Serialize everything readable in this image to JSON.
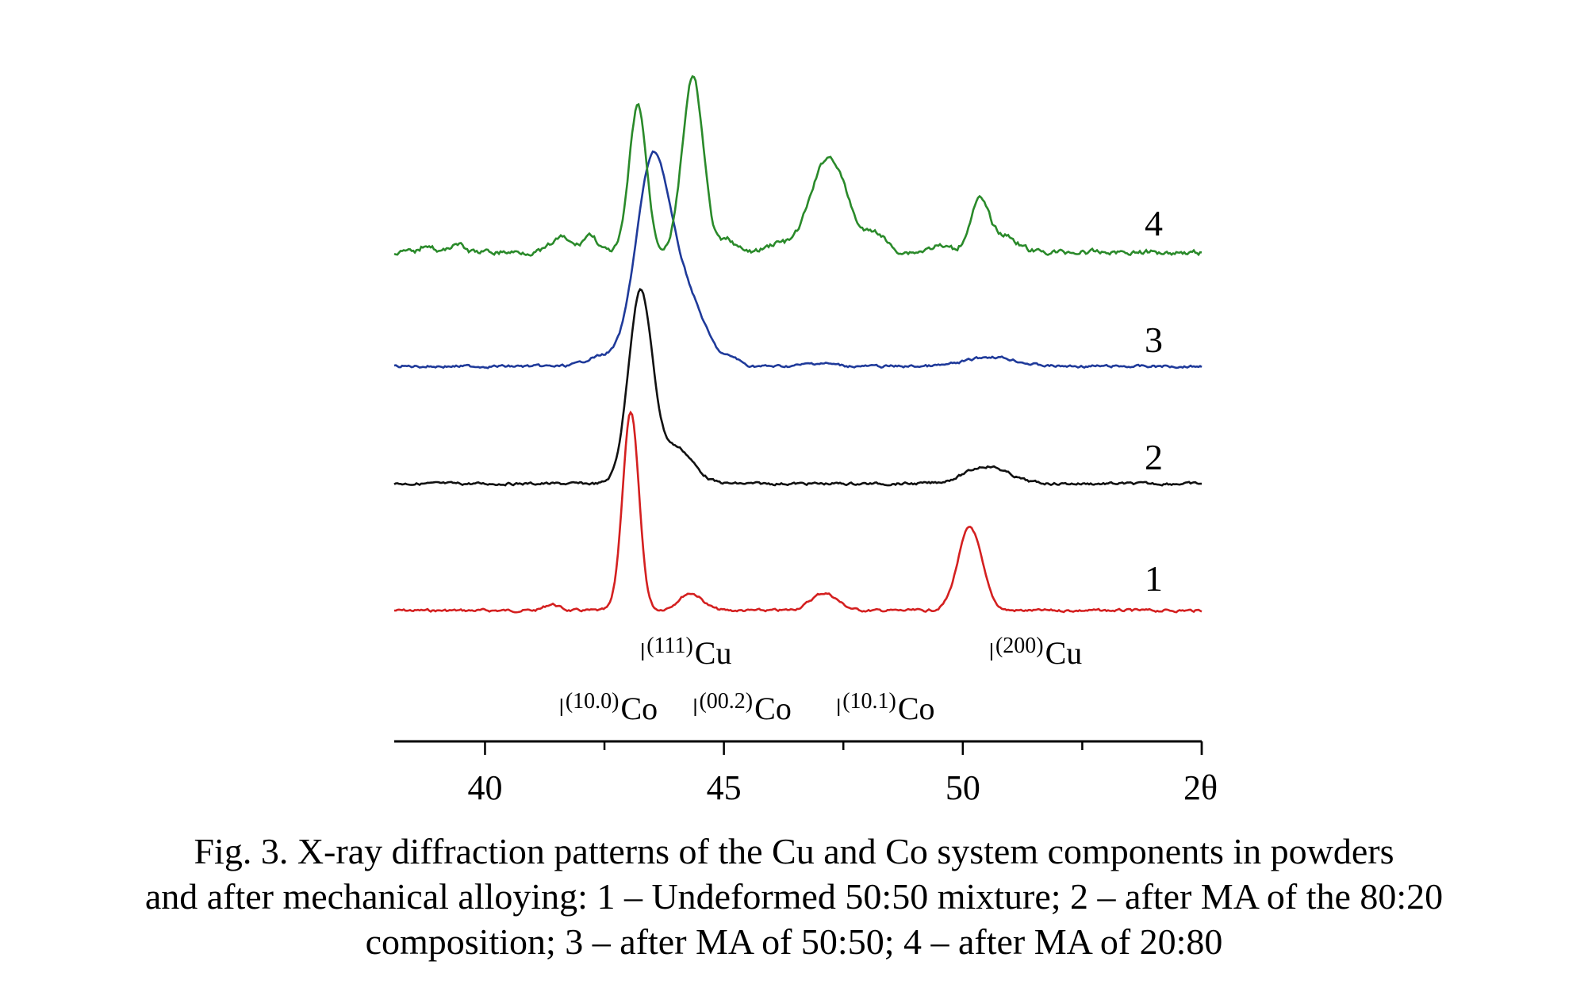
{
  "chart_data": {
    "type": "line",
    "title": "",
    "xlabel": "2θ",
    "ylabel": "",
    "xlim": [
      38.1,
      55.0
    ],
    "xticks": [
      "40",
      "45",
      "50"
    ],
    "series": [
      {
        "name": "1",
        "label": "1",
        "color": "#d42020",
        "baseline": 0,
        "peaks": [
          [
            41.4,
            8,
            0.15
          ],
          [
            43.05,
            250,
            0.17
          ],
          [
            44.3,
            22,
            0.25
          ],
          [
            47.1,
            22,
            0.28
          ],
          [
            50.15,
            105,
            0.25
          ]
        ]
      },
      {
        "name": "2",
        "label": "2",
        "color": "#111111",
        "baseline": 0,
        "peaks": [
          [
            43.25,
            240,
            0.25
          ],
          [
            44.0,
            45,
            0.35
          ],
          [
            50.5,
            22,
            0.45
          ]
        ]
      },
      {
        "name": "3",
        "label": "3",
        "color": "#1f3a9a",
        "baseline": 0,
        "peaks": [
          [
            42.4,
            12,
            0.3
          ],
          [
            43.5,
            250,
            0.35
          ],
          [
            44.2,
            85,
            0.4
          ],
          [
            45.2,
            8,
            0.15
          ],
          [
            47.0,
            4,
            0.3
          ],
          [
            50.6,
            12,
            0.5
          ]
        ]
      },
      {
        "name": "4",
        "label": "4",
        "color": "#2a8a2a",
        "baseline": 0,
        "peaks": [
          [
            43.2,
            185,
            0.18
          ],
          [
            44.35,
            220,
            0.22
          ],
          [
            47.2,
            120,
            0.38
          ],
          [
            48.2,
            22,
            0.2
          ],
          [
            50.35,
            65,
            0.2
          ],
          [
            50.9,
            20,
            0.25
          ],
          [
            38.8,
            10,
            0.12
          ],
          [
            39.4,
            12,
            0.12
          ],
          [
            41.6,
            18,
            0.2
          ],
          [
            42.2,
            22,
            0.15
          ],
          [
            45.1,
            15,
            0.15
          ],
          [
            46.1,
            10,
            0.2
          ],
          [
            49.5,
            8,
            0.2
          ]
        ]
      }
    ],
    "peak_markers": [
      {
        "prefix": "(111)",
        "element": "Cu",
        "x": 43.3,
        "row": "upper"
      },
      {
        "prefix": "(200)",
        "element": "Cu",
        "x": 50.6,
        "row": "upper"
      },
      {
        "prefix": "(10.0)",
        "element": "Co",
        "x": 41.6,
        "row": "lower"
      },
      {
        "prefix": "(00.2)",
        "element": "Co",
        "x": 44.4,
        "row": "lower"
      },
      {
        "prefix": "(10.1)",
        "element": "Co",
        "x": 47.4,
        "row": "lower"
      }
    ]
  },
  "caption": {
    "line1": "Fig. 3. X-ray diffraction patterns of the Cu and Co system components in powders",
    "line2": "and after mechanical alloying: 1 – Undeformed 50:50 mixture; 2 – after MA of the 80:20",
    "line3": "composition; 3 – after MA of 50:50; 4 – after MA of 20:80"
  }
}
